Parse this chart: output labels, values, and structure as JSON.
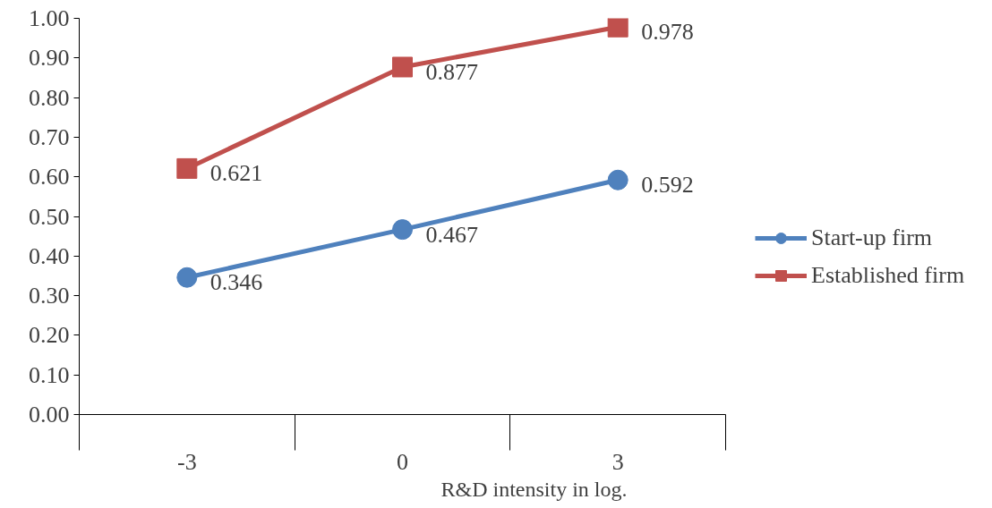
{
  "chart_data": {
    "type": "line",
    "xlabel": "R&D intensity in log.",
    "categories": [
      "-3",
      "0",
      "3"
    ],
    "series": [
      {
        "name": "Start-up firm",
        "color": "#4f81bd",
        "marker": "circle",
        "values": [
          0.346,
          0.467,
          0.592
        ]
      },
      {
        "name": "Established firm",
        "color": "#c0504d",
        "marker": "square",
        "values": [
          0.621,
          0.877,
          0.978
        ]
      }
    ],
    "ylim": [
      0,
      1
    ],
    "yticks": [
      {
        "value": 0,
        "label": "0.00"
      },
      {
        "value": 0.1,
        "label": "0.10"
      },
      {
        "value": 0.2,
        "label": "0.20"
      },
      {
        "value": 0.3,
        "label": "0.30"
      },
      {
        "value": 0.4,
        "label": "0.40"
      },
      {
        "value": 0.5,
        "label": "0.50"
      },
      {
        "value": 0.6,
        "label": "0.60"
      },
      {
        "value": 0.7,
        "label": "0.70"
      },
      {
        "value": 0.8,
        "label": "0.80"
      },
      {
        "value": 0.9,
        "label": "0.90"
      },
      {
        "value": 1,
        "label": "1.00"
      }
    ],
    "data_labels": true,
    "grid": false,
    "legend": "right",
    "line_style": "solid"
  }
}
